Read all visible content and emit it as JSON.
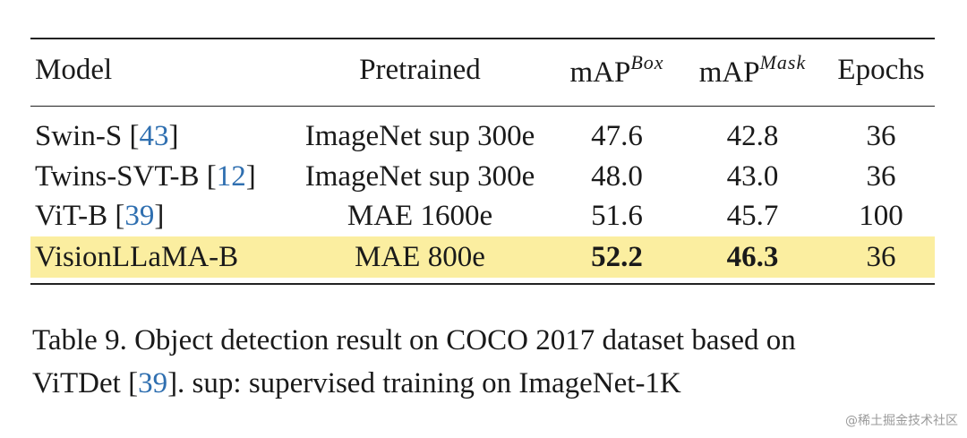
{
  "table": {
    "headers": {
      "model": "Model",
      "pretrained": "Pretrained",
      "map_box": "mAP",
      "map_box_sup": "Box",
      "map_mask": "mAP",
      "map_mask_sup": "Mask",
      "epochs": "Epochs"
    },
    "rows": [
      {
        "model": "Swin-S",
        "cite": "43",
        "pretrained": "ImageNet sup 300e",
        "map_box": "47.6",
        "map_mask": "42.8",
        "epochs": "36",
        "highlight": false
      },
      {
        "model": "Twins-SVT-B",
        "cite": "12",
        "pretrained": "ImageNet sup 300e",
        "map_box": "48.0",
        "map_mask": "43.0",
        "epochs": "36",
        "highlight": false
      },
      {
        "model": "ViT-B",
        "cite": "39",
        "pretrained": "MAE 1600e",
        "map_box": "51.6",
        "map_mask": "45.7",
        "epochs": "100",
        "highlight": false
      },
      {
        "model": "VisionLLaMA-B",
        "cite": "",
        "pretrained": "MAE 800e",
        "map_box": "52.2",
        "map_mask": "46.3",
        "epochs": "36",
        "highlight": true
      }
    ]
  },
  "caption": {
    "line1": "Table 9.  Object detection result on COCO 2017 dataset based on",
    "line2_pre": "ViTDet [",
    "line2_cite": "39",
    "line2_post": "]. sup: supervised training on ImageNet-1K"
  },
  "watermark": "@稀土掘金技术社区",
  "colors": {
    "highlight": "#fbeea0",
    "citation": "#2f6fb0"
  }
}
